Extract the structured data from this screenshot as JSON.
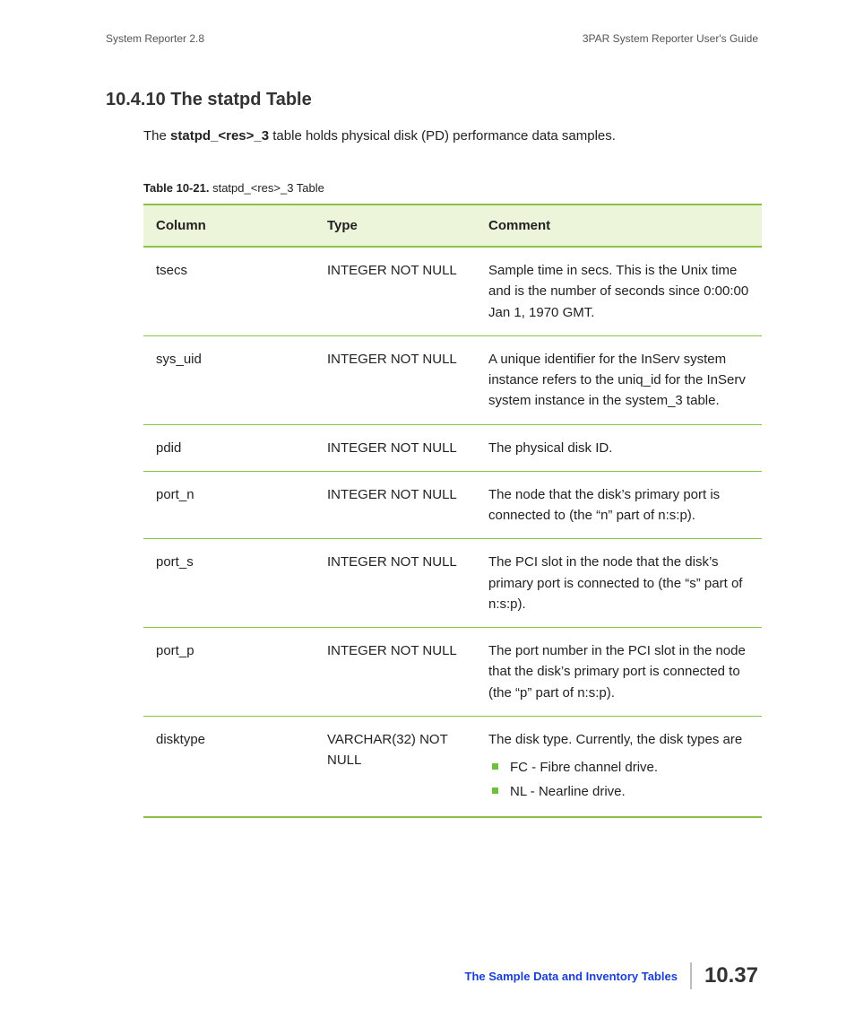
{
  "header": {
    "left": "System Reporter 2.8",
    "right": "3PAR System Reporter User's Guide"
  },
  "section": {
    "number": "10.4.10",
    "title": "The statpd Table"
  },
  "intro": {
    "pre": "The ",
    "bold": "statpd_<res>_3",
    "post": " table holds physical disk (PD) performance data samples."
  },
  "tableCaption": {
    "bold": "Table 10-21.  ",
    "rest": "statpd_<res>_3 Table"
  },
  "table": {
    "headers": {
      "c1": "Column",
      "c2": "Type",
      "c3": "Comment"
    },
    "rows": [
      {
        "col": "tsecs",
        "type": "INTEGER NOT NULL",
        "comment": "Sample time in secs. This is the Unix time and is the number of seconds since 0:00:00 Jan 1, 1970 GMT."
      },
      {
        "col": "sys_uid",
        "type": "INTEGER NOT NULL",
        "comment": "A unique identifier for the InServ system instance refers to the uniq_id for the InServ system instance in the system_3 table."
      },
      {
        "col": "pdid",
        "type": "INTEGER NOT NULL",
        "comment": "The physical disk ID."
      },
      {
        "col": "port_n",
        "type": "INTEGER NOT NULL",
        "comment": "The node that the disk’s primary port is connected to (the “n” part of n:s:p)."
      },
      {
        "col": "port_s",
        "type": "INTEGER NOT NULL",
        "comment": "The PCI slot in the node that the disk’s primary port is connected to (the “s” part of n:s:p)."
      },
      {
        "col": "port_p",
        "type": "INTEGER NOT NULL",
        "comment": "The port number in the PCI slot in the node that the disk’s primary port is connected to (the “p” part of n:s:p)."
      },
      {
        "col": "disktype",
        "type": "VARCHAR(32) NOT NULL",
        "comment": "The disk type. Currently, the disk types are",
        "bullets": [
          "FC - Fibre channel drive.",
          "NL - Nearline drive."
        ]
      }
    ]
  },
  "footer": {
    "link": "The Sample Data and Inventory Tables",
    "page": "10.37"
  },
  "colors": {
    "green_border": "#88c440",
    "green_header_bg": "#ecf5d9",
    "bullet": "#6fbf3f",
    "link": "#1a3fd1"
  }
}
